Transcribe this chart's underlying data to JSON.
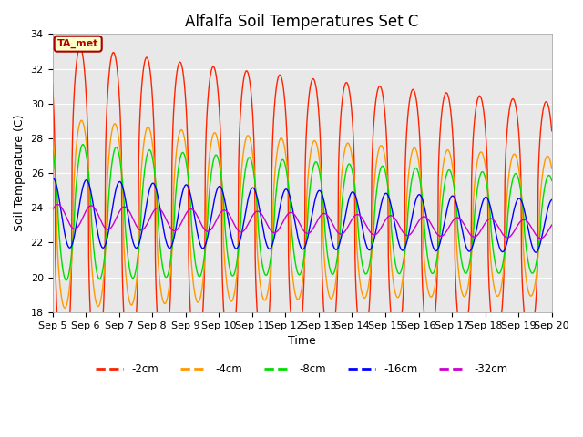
{
  "title": "Alfalfa Soil Temperatures Set C",
  "xlabel": "Time",
  "ylabel": "Soil Temperature (C)",
  "ylim": [
    18,
    34
  ],
  "ytick_vals": [
    18,
    20,
    22,
    24,
    26,
    28,
    30,
    32,
    34
  ],
  "xtick_labels": [
    "Sep 5",
    "Sep 6",
    "Sep 7",
    "Sep 8",
    "Sep 9",
    "Sep 10",
    "Sep 11",
    "Sep 12",
    "Sep 13",
    "Sep 14",
    "Sep 15",
    "Sep 16",
    "Sep 17",
    "Sep 18",
    "Sep 19",
    "Sep 20"
  ],
  "colors": {
    "-2cm": "#ff2200",
    "-4cm": "#ff9900",
    "-8cm": "#00dd00",
    "-16cm": "#0000ff",
    "-32cm": "#cc00cc"
  },
  "legend_labels": [
    "-2cm",
    "-4cm",
    "-8cm",
    "-16cm",
    "-32cm"
  ],
  "annotation_text": "TA_met",
  "annotation_color": "#aa0000",
  "annotation_bg": "#ffffcc",
  "background_color": "#e8e8e8",
  "title_fontsize": 12,
  "axis_fontsize": 9,
  "tick_fontsize": 8
}
